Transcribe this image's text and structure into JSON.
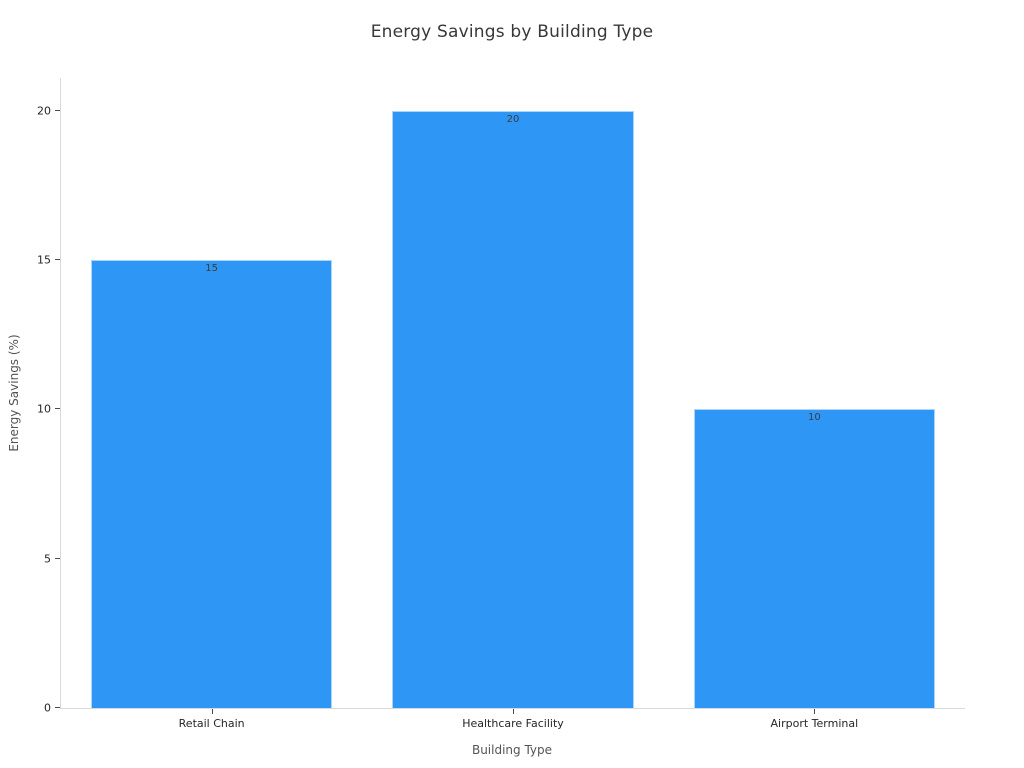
{
  "chart_data": {
    "type": "bar",
    "title": "Energy Savings by Building Type",
    "xlabel": "Building Type",
    "ylabel": "Energy Savings (%)",
    "categories": [
      "Retail Chain",
      "Healthcare Facility",
      "Airport Terminal"
    ],
    "values": [
      15,
      20,
      10
    ],
    "bar_labels": [
      "15",
      "20",
      "10"
    ],
    "yticks": [
      0,
      5,
      10,
      15,
      20
    ],
    "ylim": [
      0,
      21.1
    ],
    "grid": false,
    "legend_position": "none",
    "bar_color": "#2e96f4",
    "bar_label_position": "inside-top",
    "colors": {
      "bar": "#2e96f4",
      "axis_line": "#d9d9d9",
      "tick": "#4a4a4a",
      "tick_label_text": "#262626",
      "axis_title_text": "#545454",
      "title_text": "#383838",
      "bar_label_text": "#3d3d3d",
      "background": "#ffffff"
    }
  }
}
